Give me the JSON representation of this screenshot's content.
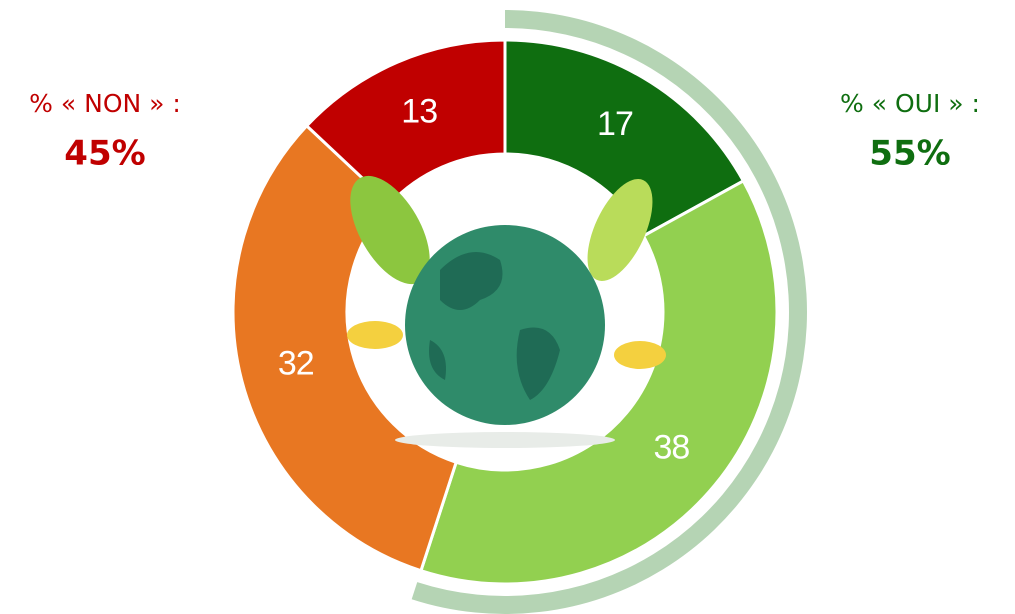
{
  "chart_data": {
    "type": "donut",
    "values": [
      17,
      38,
      32,
      13
    ],
    "colors": [
      "#0f6e10",
      "#92d050",
      "#e87722",
      "#c00000"
    ],
    "groups": [
      {
        "label": "% « OUI » :",
        "value": 55,
        "value_label": "55%",
        "color": "#0f6e10"
      },
      {
        "label": "% « NON » :",
        "value": 45,
        "value_label": "45%",
        "color": "#c00000"
      }
    ],
    "arc_color": "#b5d4b4"
  }
}
